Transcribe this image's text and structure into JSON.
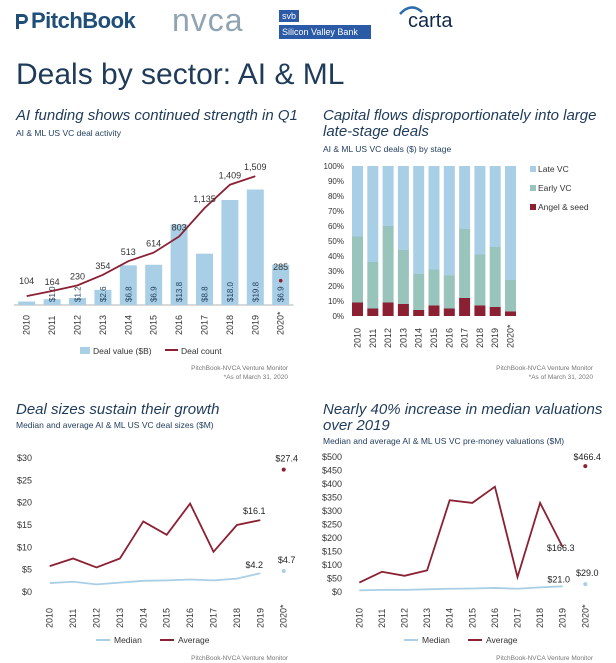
{
  "logos": {
    "pitchbook": "PitchBook",
    "nvca": "nvca",
    "svb_top": "svb",
    "svb_bottom": "Silicon Valley Bank",
    "carta": "carta"
  },
  "page_title": "Deals by sector: AI & ML",
  "colors": {
    "light_blue": "#a9cfe6",
    "maroon": "#8b2033",
    "teal": "#98c4bc",
    "title_navy": "#1f3b5a"
  },
  "panels": [
    {
      "title": "AI funding shows continued strength in Q1",
      "subtitle": "AI & ML US VC deal activity",
      "source": "PitchBook-NVCA Venture Monitor",
      "note": "*As of March 31, 2020",
      "legend": [
        "Deal value ($B)",
        "Deal count"
      ]
    },
    {
      "title": "Capital flows disproportionately into large late-stage deals",
      "subtitle": "AI & ML US VC deals ($) by stage",
      "source": "PitchBook-NVCA Venture Monitor",
      "note": "*As of March 31, 2020",
      "legend": [
        "Late VC",
        "Early VC",
        "Angel & seed"
      ]
    },
    {
      "title": "Deal sizes sustain their growth",
      "subtitle": "Median and average AI & ML US VC deal sizes ($M)",
      "source": "PitchBook-NVCA Venture Monitor",
      "legend": [
        "Median",
        "Average"
      ]
    },
    {
      "title": "Nearly 40% increase in median valuations over 2019",
      "subtitle": "Median and average AI & ML US VC pre-money valuations ($M)",
      "source": "PitchBook-NVCA Venture Monitor",
      "legend": [
        "Median",
        "Average"
      ]
    }
  ],
  "chart_data": [
    {
      "type": "bar",
      "title": "AI funding shows continued strength in Q1",
      "categories": [
        "2010",
        "2011",
        "2012",
        "2013",
        "2014",
        "2015",
        "2016",
        "2017",
        "2018",
        "2019",
        "2020*"
      ],
      "series": [
        {
          "name": "Deal value ($B)",
          "kind": "bar",
          "values": [
            0.6,
            1.0,
            1.2,
            2.6,
            6.8,
            6.9,
            13.8,
            8.8,
            18.0,
            19.8,
            6.9
          ],
          "labels": [
            "",
            "$1.0",
            "$1.2",
            "$2.6",
            "$6.8",
            "$6.9",
            "$13.8",
            "$8.8",
            "$18.0",
            "$19.8",
            "$6.9"
          ]
        },
        {
          "name": "Deal count",
          "kind": "line",
          "values": [
            104,
            164,
            230,
            354,
            513,
            614,
            803,
            1135,
            1409,
            1509,
            285
          ],
          "labels": [
            "104",
            "164",
            "230",
            "354",
            "513",
            "614",
            "803",
            "1,135",
            "1,409",
            "1,509",
            "285"
          ]
        }
      ],
      "ylim_value": [
        0,
        24
      ],
      "ylim_count": [
        0,
        1640
      ]
    },
    {
      "type": "bar",
      "stacked": true,
      "title": "Capital flows disproportionately into large late-stage deals",
      "categories": [
        "2010",
        "2011",
        "2012",
        "2013",
        "2014",
        "2015",
        "2016",
        "2017",
        "2018",
        "2019",
        "2020*"
      ],
      "yticks": [
        "0%",
        "10%",
        "20%",
        "30%",
        "40%",
        "50%",
        "60%",
        "70%",
        "80%",
        "90%",
        "100%"
      ],
      "series": [
        {
          "name": "Angel & seed",
          "values": [
            9,
            5,
            9,
            8,
            4,
            7,
            5,
            12,
            7,
            6,
            3
          ]
        },
        {
          "name": "Early VC",
          "values": [
            44,
            31,
            51,
            36,
            24,
            24,
            22,
            46,
            34,
            40,
            21
          ]
        },
        {
          "name": "Late VC",
          "values": [
            47,
            64,
            40,
            56,
            72,
            69,
            73,
            42,
            59,
            54,
            76
          ]
        }
      ],
      "ylim": [
        0,
        100
      ]
    },
    {
      "type": "line",
      "title": "Deal sizes sustain their growth",
      "categories": [
        "2010",
        "2011",
        "2012",
        "2013",
        "2014",
        "2015",
        "2016",
        "2017",
        "2018",
        "2019",
        "2020*"
      ],
      "yticks": [
        "$0",
        "$5",
        "$10",
        "$15",
        "$20",
        "$25",
        "$30"
      ],
      "series": [
        {
          "name": "Median",
          "values": [
            2.0,
            2.3,
            1.7,
            2.1,
            2.5,
            2.6,
            2.8,
            2.6,
            3.0,
            4.2,
            4.7
          ],
          "end_label": "$4.2",
          "q1_label": "$4.7"
        },
        {
          "name": "Average",
          "values": [
            5.8,
            7.5,
            5.5,
            7.5,
            15.8,
            12.8,
            19.8,
            9.0,
            15.0,
            16.1,
            27.4
          ],
          "end_label": "$16.1",
          "q1_label": "$27.4"
        }
      ],
      "ylim": [
        0,
        30
      ]
    },
    {
      "type": "line",
      "title": "Nearly 40% increase in median valuations over 2019",
      "categories": [
        "2010",
        "2011",
        "2012",
        "2013",
        "2014",
        "2015",
        "2016",
        "2017",
        "2018",
        "2019",
        "2020*"
      ],
      "yticks": [
        "$0",
        "$50",
        "$100",
        "$150",
        "$200",
        "$250",
        "$300",
        "$350",
        "$400",
        "$450",
        "$500"
      ],
      "series": [
        {
          "name": "Median",
          "values": [
            6,
            8,
            8,
            10,
            12,
            13,
            15,
            12,
            17,
            21.0,
            29.0
          ],
          "end_label": "$21.0",
          "q1_label": "$29.0"
        },
        {
          "name": "Average",
          "values": [
            35,
            75,
            60,
            80,
            340,
            330,
            390,
            55,
            330,
            166.3,
            466.4
          ],
          "end_label": "$166.3",
          "q1_label": "$466.4"
        }
      ],
      "ylim": [
        0,
        500
      ]
    }
  ]
}
